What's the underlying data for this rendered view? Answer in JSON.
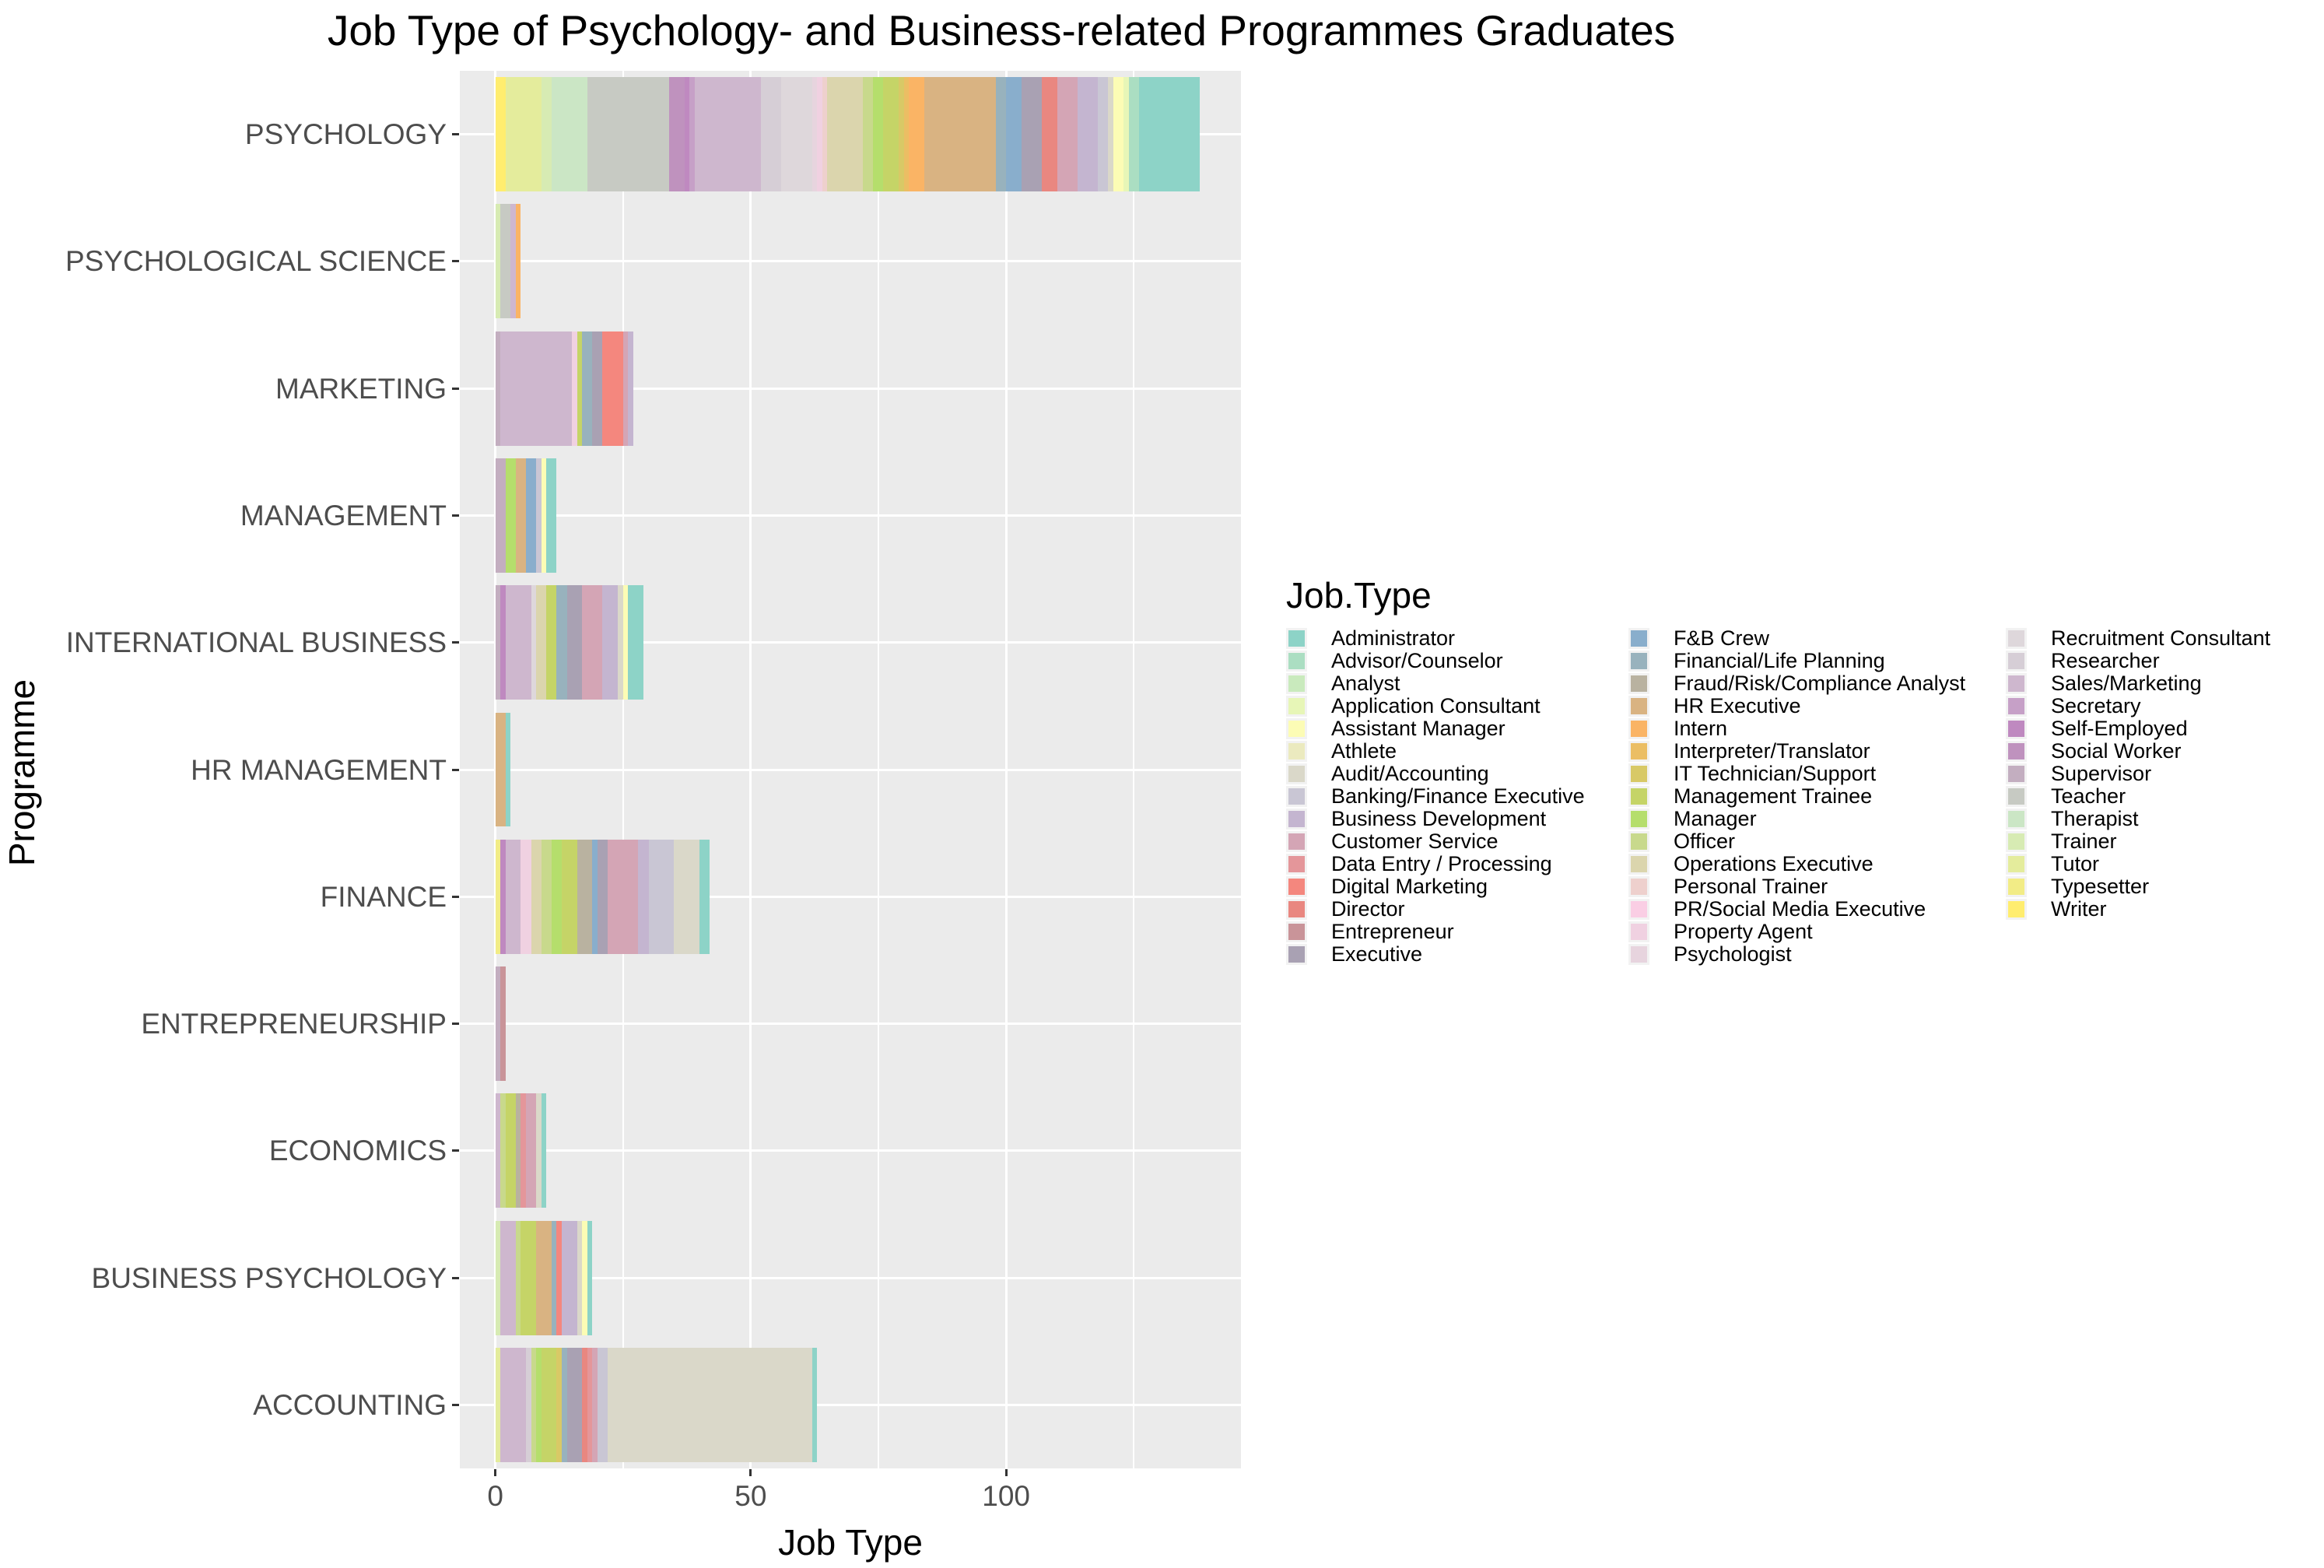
{
  "title": "Job Type of Psychology- and Business-related Programmes Graduates",
  "axes": {
    "x_title": "Job Type",
    "y_title": "Programme",
    "x_tick_labels": [
      "0",
      "50",
      "100"
    ],
    "x_tick_values": [
      0,
      50,
      100
    ],
    "x_minor_values": [
      25,
      75,
      125
    ]
  },
  "style": {
    "panel_bg": "#EBEBEB",
    "grid_color": "#FFFFFF",
    "tick_text_color": "#4D4D4D",
    "tick_mark_color": "#333333",
    "text_color": "#000000",
    "legend_key_bg": "#F2F2F2"
  },
  "legend": {
    "title": "Job.Type",
    "columns": [
      15,
      15,
      13
    ],
    "items": [
      {
        "label": "Administrator",
        "color": "#8DD3C7"
      },
      {
        "label": "Advisor/Counselor",
        "color": "#ABDEC2"
      },
      {
        "label": "Analyst",
        "color": "#C9EABD"
      },
      {
        "label": "Application Consultant",
        "color": "#E7F6B7"
      },
      {
        "label": "Assistant Manager",
        "color": "#FCFCB5"
      },
      {
        "label": "Athlete",
        "color": "#EBEABF"
      },
      {
        "label": "Audit/Accounting",
        "color": "#DAD8C9"
      },
      {
        "label": "Banking/Finance Executive",
        "color": "#C9C6D4"
      },
      {
        "label": "Business Development",
        "color": "#C4B5D0"
      },
      {
        "label": "Customer Service",
        "color": "#D4A5B5"
      },
      {
        "label": "Data Entry / Processing",
        "color": "#E4969A"
      },
      {
        "label": "Digital Marketing",
        "color": "#F4877E"
      },
      {
        "label": "Director",
        "color": "#E98780"
      },
      {
        "label": "Entrepreneur",
        "color": "#C99499"
      },
      {
        "label": "Executive",
        "color": "#A9A1B3"
      },
      {
        "label": "F&B Crew",
        "color": "#89AECC"
      },
      {
        "label": "Financial/Life Planning",
        "color": "#98B2BD"
      },
      {
        "label": "Fraud/Risk/Compliance Analyst",
        "color": "#B9B2A0"
      },
      {
        "label": "HR Executive",
        "color": "#D9B382"
      },
      {
        "label": "Intern",
        "color": "#FAB465"
      },
      {
        "label": "Interpreter/Translator",
        "color": "#EBBE64"
      },
      {
        "label": "IT Technician/Support",
        "color": "#D8C966"
      },
      {
        "label": "Management Trainee",
        "color": "#C5D467"
      },
      {
        "label": "Manager",
        "color": "#B5DE6C"
      },
      {
        "label": "Officer",
        "color": "#C8D98C"
      },
      {
        "label": "Operations Executive",
        "color": "#DBD5AD"
      },
      {
        "label": "Personal Trainer",
        "color": "#EED0CD"
      },
      {
        "label": "PR/Social Media Executive",
        "color": "#FACEE4"
      },
      {
        "label": "Property Agent",
        "color": "#F0D1E1"
      },
      {
        "label": "Psychologist",
        "color": "#E7D4DE"
      },
      {
        "label": "Recruitment Consultant",
        "color": "#DED7DB"
      },
      {
        "label": "Researcher",
        "color": "#D6CED6"
      },
      {
        "label": "Sales/Marketing",
        "color": "#CEB7CE"
      },
      {
        "label": "Secretary",
        "color": "#C6A0C7"
      },
      {
        "label": "Self-Employed",
        "color": "#BF89C0"
      },
      {
        "label": "Social Worker",
        "color": "#BF92BE"
      },
      {
        "label": "Supervisor",
        "color": "#C3AEC0"
      },
      {
        "label": "Teacher",
        "color": "#C7CAC3"
      },
      {
        "label": "Therapist",
        "color": "#CBE6C5"
      },
      {
        "label": "Trainer",
        "color": "#D7EBB3"
      },
      {
        "label": "Tutor",
        "color": "#E4EC9C"
      },
      {
        "label": "Typesetter",
        "color": "#F2EC86"
      },
      {
        "label": "Writer",
        "color": "#FFED6F"
      }
    ]
  },
  "chart_data": {
    "type": "bar",
    "orientation": "horizontal",
    "stacked": true,
    "title": "Job Type of Psychology- and Business-related Programmes Graduates",
    "xlabel": "Job Type",
    "ylabel": "Programme",
    "xlim": [
      0,
      146
    ],
    "x_ticks": [
      0,
      50,
      100
    ],
    "grid": true,
    "legend_position": "right",
    "stack_order": "reverse alphabetical from baseline (x=0) toward bar end",
    "categories": [
      "PSYCHOLOGY",
      "PSYCHOLOGICAL SCIENCE",
      "MARKETING",
      "MANAGEMENT",
      "INTERNATIONAL BUSINESS",
      "HR MANAGEMENT",
      "FINANCE",
      "ENTREPRENEURSHIP",
      "ECONOMICS",
      "BUSINESS PSYCHOLOGY",
      "ACCOUNTING"
    ],
    "bars": [
      {
        "programme": "PSYCHOLOGY",
        "segments": [
          [
            "Writer",
            2
          ],
          [
            "Tutor",
            7
          ],
          [
            "Trainer",
            2
          ],
          [
            "Therapist",
            7
          ],
          [
            "Teacher",
            16
          ],
          [
            "Social Worker",
            3
          ],
          [
            "Self-Employed",
            1
          ],
          [
            "Secretary",
            1
          ],
          [
            "Sales/Marketing",
            13
          ],
          [
            "Researcher",
            4
          ],
          [
            "Recruitment Consultant",
            6
          ],
          [
            "Psychologist",
            1
          ],
          [
            "Property Agent",
            1
          ],
          [
            "Personal Trainer",
            1
          ],
          [
            "Operations Executive",
            7
          ],
          [
            "Officer",
            2
          ],
          [
            "Manager",
            2
          ],
          [
            "Management Trainee",
            3
          ],
          [
            "IT Technician/Support",
            1
          ],
          [
            "Interpreter/Translator",
            1
          ],
          [
            "Intern",
            3
          ],
          [
            "HR Executive",
            14
          ],
          [
            "Financial/Life Planning",
            2
          ],
          [
            "F&B Crew",
            3
          ],
          [
            "Executive",
            4
          ],
          [
            "Director",
            3
          ],
          [
            "Customer Service",
            4
          ],
          [
            "Business Development",
            4
          ],
          [
            "Banking/Finance Executive",
            2
          ],
          [
            "Audit/Accounting",
            1
          ],
          [
            "Assistant Manager",
            2
          ],
          [
            "Application Consultant",
            1
          ],
          [
            "Advisor/Counselor",
            2
          ],
          [
            "Administrator",
            12
          ]
        ]
      },
      {
        "programme": "PSYCHOLOGICAL SCIENCE",
        "segments": [
          [
            "Trainer",
            1
          ],
          [
            "Teacher",
            2
          ],
          [
            "Sales/Marketing",
            1
          ],
          [
            "Intern",
            1
          ]
        ]
      },
      {
        "programme": "MARKETING",
        "segments": [
          [
            "Supervisor",
            1
          ],
          [
            "Sales/Marketing",
            14
          ],
          [
            "Property Agent",
            1
          ],
          [
            "Management Trainee",
            1
          ],
          [
            "Financial/Life Planning",
            2
          ],
          [
            "Executive",
            2
          ],
          [
            "Digital Marketing",
            4
          ],
          [
            "Customer Service",
            1
          ],
          [
            "Business Development",
            1
          ]
        ]
      },
      {
        "programme": "MANAGEMENT",
        "segments": [
          [
            "Supervisor",
            2
          ],
          [
            "Manager",
            2
          ],
          [
            "HR Executive",
            2
          ],
          [
            "F&B Crew",
            2
          ],
          [
            "Banking/Finance Executive",
            1
          ],
          [
            "Assistant Manager",
            1
          ],
          [
            "Administrator",
            2
          ]
        ]
      },
      {
        "programme": "INTERNATIONAL BUSINESS",
        "segments": [
          [
            "Supervisor",
            1
          ],
          [
            "Self-Employed",
            1
          ],
          [
            "Sales/Marketing",
            5
          ],
          [
            "Recruitment Consultant",
            1
          ],
          [
            "Operations Executive",
            2
          ],
          [
            "Management Trainee",
            2
          ],
          [
            "Financial/Life Planning",
            2
          ],
          [
            "Executive",
            3
          ],
          [
            "Customer Service",
            4
          ],
          [
            "Business Development",
            3
          ],
          [
            "Audit/Accounting",
            1
          ],
          [
            "Assistant Manager",
            1
          ],
          [
            "Administrator",
            3
          ]
        ]
      },
      {
        "programme": "HR MANAGEMENT",
        "segments": [
          [
            "HR Executive",
            2
          ],
          [
            "Administrator",
            1
          ]
        ]
      },
      {
        "programme": "FINANCE",
        "segments": [
          [
            "Typesetter",
            1
          ],
          [
            "Self-Employed",
            1
          ],
          [
            "Sales/Marketing",
            3
          ],
          [
            "Property Agent",
            2
          ],
          [
            "Operations Executive",
            2
          ],
          [
            "Officer",
            2
          ],
          [
            "Manager",
            2
          ],
          [
            "Management Trainee",
            3
          ],
          [
            "Fraud/Risk/Compliance Analyst",
            3
          ],
          [
            "F&B Crew",
            1
          ],
          [
            "Executive",
            2
          ],
          [
            "Customer Service",
            6
          ],
          [
            "Business Development",
            2
          ],
          [
            "Banking/Finance Executive",
            5
          ],
          [
            "Audit/Accounting",
            5
          ],
          [
            "Administrator",
            2
          ]
        ]
      },
      {
        "programme": "ENTREPRENEURSHIP",
        "segments": [
          [
            "Supervisor",
            1
          ],
          [
            "Entrepreneur",
            1
          ]
        ]
      },
      {
        "programme": "ECONOMICS",
        "segments": [
          [
            "Sales/Marketing",
            1
          ],
          [
            "Officer",
            1
          ],
          [
            "Management Trainee",
            2
          ],
          [
            "Fraud/Risk/Compliance Analyst",
            1
          ],
          [
            "Data Entry / Processing",
            1
          ],
          [
            "Customer Service",
            2
          ],
          [
            "Audit/Accounting",
            1
          ],
          [
            "Administrator",
            1
          ]
        ]
      },
      {
        "programme": "BUSINESS PSYCHOLOGY",
        "segments": [
          [
            "Trainer",
            1
          ],
          [
            "Sales/Marketing",
            3
          ],
          [
            "Officer",
            1
          ],
          [
            "Management Trainee",
            3
          ],
          [
            "HR Executive",
            3
          ],
          [
            "Financial/Life Planning",
            1
          ],
          [
            "Digital Marketing",
            1
          ],
          [
            "Business Development",
            3
          ],
          [
            "Audit/Accounting",
            1
          ],
          [
            "Assistant Manager",
            1
          ],
          [
            "Administrator",
            1
          ]
        ]
      },
      {
        "programme": "ACCOUNTING",
        "segments": [
          [
            "Tutor",
            1
          ],
          [
            "Sales/Marketing",
            5
          ],
          [
            "Researcher",
            1
          ],
          [
            "Officer",
            1
          ],
          [
            "Manager",
            1
          ],
          [
            "Management Trainee",
            3
          ],
          [
            "IT Technician/Support",
            1
          ],
          [
            "Financial/Life Planning",
            1
          ],
          [
            "Executive",
            3
          ],
          [
            "Director",
            1
          ],
          [
            "Data Entry / Processing",
            1
          ],
          [
            "Customer Service",
            1
          ],
          [
            "Banking/Finance Executive",
            2
          ],
          [
            "Audit/Accounting",
            40
          ],
          [
            "Administrator",
            1
          ]
        ]
      }
    ]
  }
}
